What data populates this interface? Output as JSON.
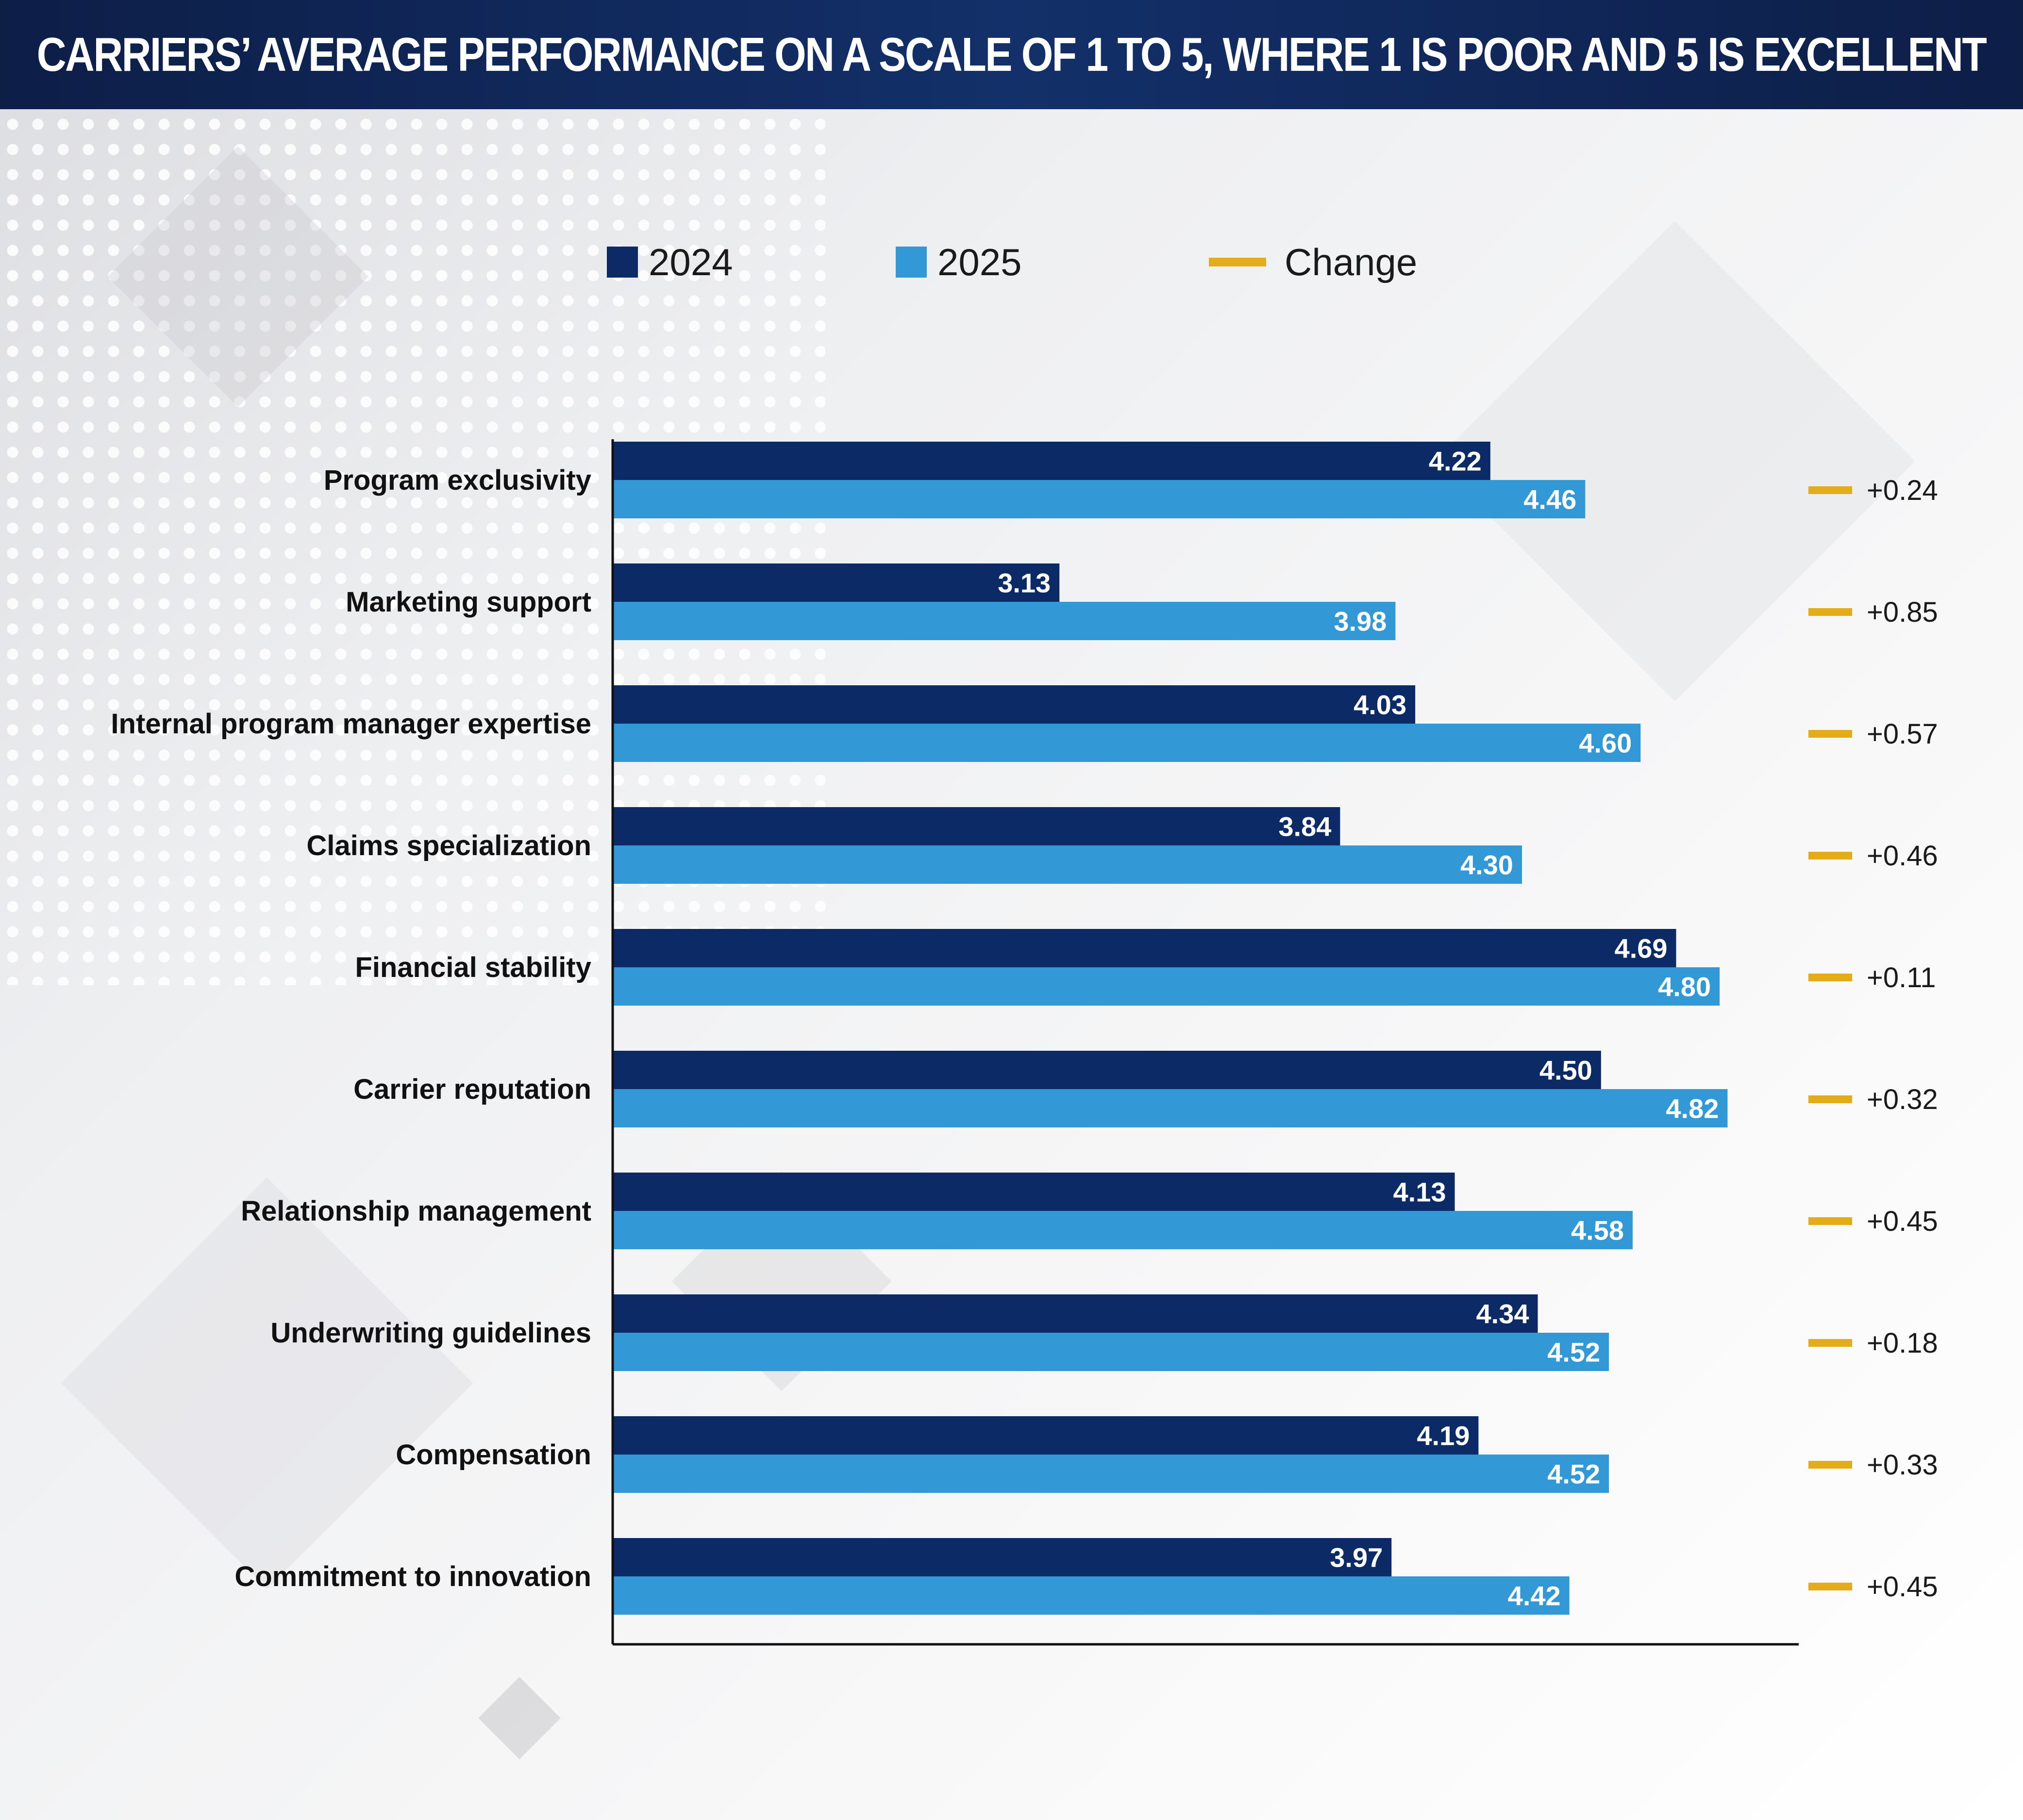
{
  "title": "CARRIERS’ AVERAGE PERFORMANCE ON A SCALE OF 1 TO 5, WHERE 1 IS POOR AND 5 IS EXCELLENT",
  "legend": {
    "series_2024": "2024",
    "series_2025": "2025",
    "change": "Change"
  },
  "colors": {
    "series_2024": "#0c2a66",
    "series_2025": "#3399d6",
    "change": "#e5ac1a",
    "header": "#0f2454"
  },
  "chart_data": {
    "type": "bar",
    "orientation": "horizontal",
    "title": "CARRIERS’ AVERAGE PERFORMANCE ON A SCALE OF 1 TO 5, WHERE 1 IS POOR AND 5 IS EXCELLENT",
    "categories": [
      "Program exclusivity",
      "Marketing support",
      "Internal program manager expertise",
      "Claims specialization",
      "Financial stability",
      "Carrier reputation",
      "Relationship management",
      "Underwriting guidelines",
      "Compensation",
      "Commitment to innovation"
    ],
    "series": [
      {
        "name": "2024",
        "values": [
          4.22,
          3.13,
          4.03,
          3.84,
          4.69,
          4.5,
          4.13,
          4.34,
          4.19,
          3.97
        ],
        "labels": [
          "4.22",
          "3.13",
          "4.03",
          "3.84",
          "4.69",
          "4.50",
          "4.13",
          "4.34",
          "4.19",
          "3.97"
        ]
      },
      {
        "name": "2025",
        "values": [
          4.46,
          3.98,
          4.6,
          4.3,
          4.8,
          4.82,
          4.58,
          4.52,
          4.52,
          4.42
        ],
        "labels": [
          "4.46",
          "3.98",
          "4.60",
          "4.30",
          "4.80",
          "4.82",
          "4.58",
          "4.52",
          "4.52",
          "4.42"
        ]
      }
    ],
    "change": [
      0.24,
      0.85,
      0.57,
      0.46,
      0.11,
      0.32,
      0.45,
      0.18,
      0.33,
      0.45
    ],
    "change_labels": [
      "+0.24",
      "+0.85",
      "+0.57",
      "+0.46",
      "+0.11",
      "+0.32",
      "+0.45",
      "+0.18",
      "+0.33",
      "+0.45"
    ],
    "xlim": [
      2,
      5
    ],
    "legend_position": "top",
    "grid": false
  }
}
